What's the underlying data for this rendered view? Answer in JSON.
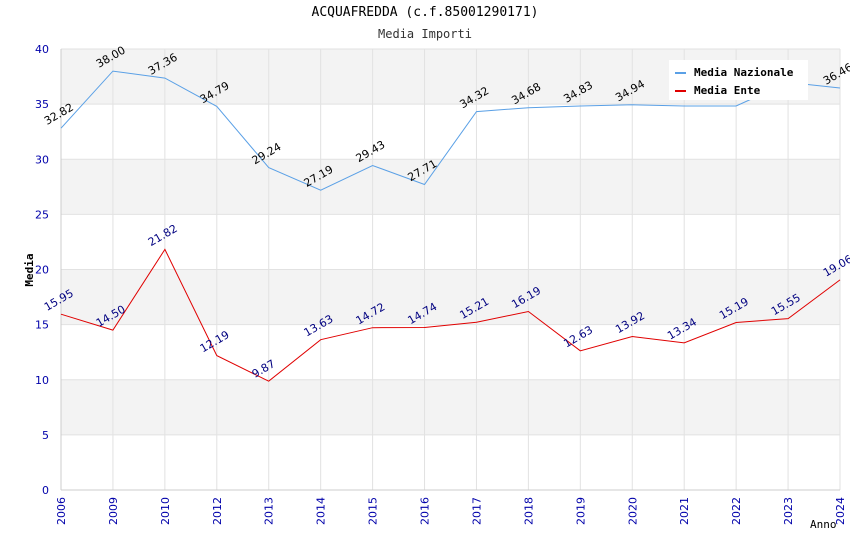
{
  "title": "ACQUAFREDDA (c.f.85001290171)",
  "subtitle": "Media Importi",
  "chart_data": {
    "type": "line",
    "title": "ACQUAFREDDA (c.f.85001290171)",
    "subtitle": "Media Importi",
    "xlabel": "Anno",
    "ylabel": "Media",
    "ylim": [
      0,
      40
    ],
    "yticks": [
      "0",
      "5",
      "10",
      "15",
      "20",
      "25",
      "30",
      "35",
      "40"
    ],
    "categories": [
      "2006",
      "2009",
      "2010",
      "2012",
      "2013",
      "2014",
      "2015",
      "2016",
      "2017",
      "2018",
      "2019",
      "2020",
      "2021",
      "2022",
      "2023",
      "2024"
    ],
    "series": [
      {
        "name": "Media Nazionale",
        "color": "#5aa0e6",
        "label_color": "#000000",
        "values": [
          32.82,
          38.0,
          37.36,
          34.79,
          29.24,
          27.19,
          29.43,
          27.71,
          34.32,
          34.68,
          34.83,
          34.94,
          34.83,
          34.83,
          36.97,
          36.46
        ],
        "labels": [
          "32.82",
          "38.00",
          "37.36",
          "34.79",
          "29.24",
          "27.19",
          "29.43",
          "27.71",
          "34.32",
          "34.68",
          "34.83",
          "34.94",
          "",
          "",
          "",
          "36.46"
        ]
      },
      {
        "name": "Media Ente",
        "color": "#e00000",
        "label_color": "#000080",
        "values": [
          15.95,
          14.5,
          21.82,
          12.19,
          9.87,
          13.63,
          14.72,
          14.74,
          15.21,
          16.19,
          12.63,
          13.92,
          13.34,
          15.19,
          15.55,
          19.06
        ],
        "labels": [
          "15.95",
          "14.50",
          "21.82",
          "12.19",
          "9.87",
          "13.63",
          "14.72",
          "14.74",
          "15.21",
          "16.19",
          "12.63",
          "13.92",
          "13.34",
          "15.19",
          "15.55",
          "19.06"
        ]
      }
    ],
    "grid": true,
    "legend_position": "top-right"
  }
}
